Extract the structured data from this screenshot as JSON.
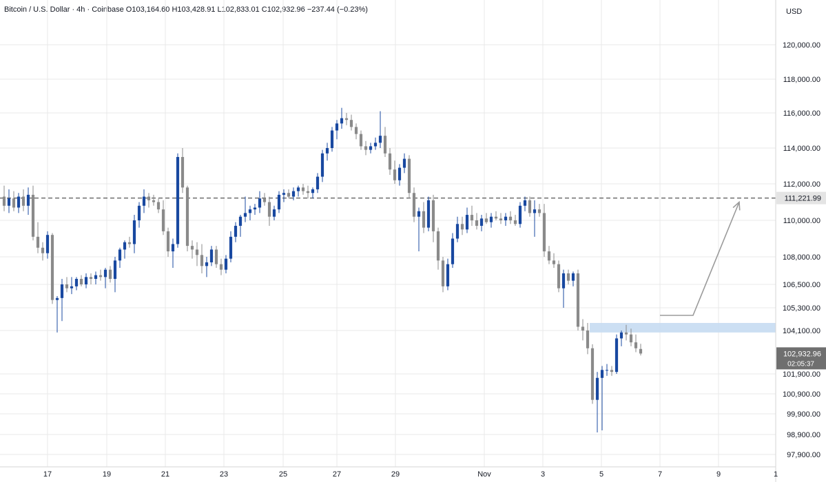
{
  "header": {
    "symbol": "Bitcoin / U.S. Dollar",
    "sep1": "·",
    "interval": "4h",
    "sep2": "·",
    "exchange": "Coinbase",
    "o_label": "O",
    "o_value": "103,164.60",
    "h_label": "H",
    "h_value": "103,428.91",
    "l_label": "L",
    "l_value": "102,833.01",
    "c_label": "C",
    "c_value": "102,932.96",
    "change": "−237.44 (−0.23%)"
  },
  "colors": {
    "up": "#1848a0",
    "down": "#8a8a8a",
    "grid": "#e9e9e9",
    "level_line": "#555555",
    "zone": "#c6dcf2",
    "arrow": "#9a9a9a",
    "last_price_bg": "#6f6f6f"
  },
  "chart_data": {
    "type": "candlestick",
    "currency": "USD",
    "price_scale": {
      "unit": "USD",
      "labels": [
        "120,000.00",
        "118,000.00",
        "116,000.00",
        "114,000.00",
        "112,000.00",
        "110,000.00",
        "108,000.00",
        "106,500.00",
        "105,300.00",
        "104,100.00",
        "101,900.00",
        "100,900.00",
        "99,900.00",
        "98,900.00",
        "97,900.00"
      ]
    },
    "time_scale": {
      "labels": [
        "17",
        "19",
        "21",
        "23",
        "25",
        "27",
        "29",
        "Nov",
        "3",
        "5",
        "7",
        "9",
        "1"
      ]
    },
    "resistance_level": {
      "value": 111221.99,
      "label": "111,221.99"
    },
    "support_zone": {
      "low": 104000,
      "high": 104500
    },
    "last_price": {
      "value": 102932.96,
      "label": "102,932.96",
      "countdown": "02:05:37"
    },
    "projection_arrow": {
      "from": 104900,
      "to": 111000
    },
    "candles": [
      {
        "o": 111300,
        "h": 111900,
        "l": 110500,
        "c": 110800
      },
      {
        "o": 110800,
        "h": 111700,
        "l": 110400,
        "c": 111200
      },
      {
        "o": 111200,
        "h": 111600,
        "l": 110500,
        "c": 110700
      },
      {
        "o": 110700,
        "h": 111500,
        "l": 110400,
        "c": 111300
      },
      {
        "o": 111300,
        "h": 111700,
        "l": 110500,
        "c": 110800
      },
      {
        "o": 110800,
        "h": 111800,
        "l": 110300,
        "c": 111400
      },
      {
        "o": 111400,
        "h": 111900,
        "l": 108900,
        "c": 109100
      },
      {
        "o": 109100,
        "h": 109900,
        "l": 108200,
        "c": 108500
      },
      {
        "o": 108500,
        "h": 108800,
        "l": 107800,
        "c": 108200
      },
      {
        "o": 108200,
        "h": 109400,
        "l": 107900,
        "c": 109200
      },
      {
        "o": 109200,
        "h": 109300,
        "l": 105500,
        "c": 105700
      },
      {
        "o": 105700,
        "h": 105900,
        "l": 104000,
        "c": 105800
      },
      {
        "o": 105800,
        "h": 106800,
        "l": 104600,
        "c": 106500
      },
      {
        "o": 106500,
        "h": 106900,
        "l": 106100,
        "c": 106300
      },
      {
        "o": 106300,
        "h": 106900,
        "l": 106000,
        "c": 106400
      },
      {
        "o": 106400,
        "h": 106900,
        "l": 106200,
        "c": 106800
      },
      {
        "o": 106800,
        "h": 107000,
        "l": 106400,
        "c": 106500
      },
      {
        "o": 106500,
        "h": 107100,
        "l": 106300,
        "c": 106900
      },
      {
        "o": 106900,
        "h": 107100,
        "l": 106500,
        "c": 106800
      },
      {
        "o": 106800,
        "h": 107200,
        "l": 106500,
        "c": 107000
      },
      {
        "o": 107000,
        "h": 107300,
        "l": 106700,
        "c": 106900
      },
      {
        "o": 106900,
        "h": 107400,
        "l": 106300,
        "c": 107300
      },
      {
        "o": 107300,
        "h": 107500,
        "l": 106600,
        "c": 106800
      },
      {
        "o": 106800,
        "h": 108000,
        "l": 106100,
        "c": 107800
      },
      {
        "o": 107800,
        "h": 108500,
        "l": 107400,
        "c": 108400
      },
      {
        "o": 108400,
        "h": 108900,
        "l": 107900,
        "c": 108800
      },
      {
        "o": 108800,
        "h": 109100,
        "l": 108500,
        "c": 108700
      },
      {
        "o": 108700,
        "h": 110300,
        "l": 108200,
        "c": 110000
      },
      {
        "o": 110000,
        "h": 111000,
        "l": 109600,
        "c": 110800
      },
      {
        "o": 110800,
        "h": 111700,
        "l": 110400,
        "c": 111300
      },
      {
        "o": 111300,
        "h": 111500,
        "l": 110700,
        "c": 111100
      },
      {
        "o": 111100,
        "h": 111400,
        "l": 110800,
        "c": 111000
      },
      {
        "o": 111000,
        "h": 111200,
        "l": 110400,
        "c": 110600
      },
      {
        "o": 110600,
        "h": 111100,
        "l": 109200,
        "c": 109400
      },
      {
        "o": 109400,
        "h": 109600,
        "l": 108000,
        "c": 108300
      },
      {
        "o": 108300,
        "h": 109000,
        "l": 107400,
        "c": 108700
      },
      {
        "o": 108700,
        "h": 113700,
        "l": 108500,
        "c": 113500
      },
      {
        "o": 113500,
        "h": 114000,
        "l": 111500,
        "c": 111800
      },
      {
        "o": 111800,
        "h": 111900,
        "l": 108300,
        "c": 108600
      },
      {
        "o": 108600,
        "h": 108900,
        "l": 107900,
        "c": 108400
      },
      {
        "o": 108400,
        "h": 108800,
        "l": 107500,
        "c": 108100
      },
      {
        "o": 108100,
        "h": 108700,
        "l": 107100,
        "c": 107500
      },
      {
        "o": 107500,
        "h": 108000,
        "l": 106900,
        "c": 107700
      },
      {
        "o": 107700,
        "h": 108600,
        "l": 107500,
        "c": 108400
      },
      {
        "o": 108400,
        "h": 108600,
        "l": 107400,
        "c": 107600
      },
      {
        "o": 107600,
        "h": 107900,
        "l": 107000,
        "c": 107300
      },
      {
        "o": 107300,
        "h": 108100,
        "l": 107100,
        "c": 107900
      },
      {
        "o": 107900,
        "h": 109400,
        "l": 107700,
        "c": 109100
      },
      {
        "o": 109100,
        "h": 109900,
        "l": 108800,
        "c": 109700
      },
      {
        "o": 109700,
        "h": 110300,
        "l": 109100,
        "c": 110200
      },
      {
        "o": 110200,
        "h": 111300,
        "l": 109900,
        "c": 110400
      },
      {
        "o": 110400,
        "h": 110800,
        "l": 110000,
        "c": 110600
      },
      {
        "o": 110600,
        "h": 110900,
        "l": 110300,
        "c": 110700
      },
      {
        "o": 110700,
        "h": 111600,
        "l": 110400,
        "c": 111200
      },
      {
        "o": 111200,
        "h": 111500,
        "l": 110800,
        "c": 111000
      },
      {
        "o": 111000,
        "h": 111300,
        "l": 109700,
        "c": 110200
      },
      {
        "o": 110200,
        "h": 110800,
        "l": 110000,
        "c": 110600
      },
      {
        "o": 110600,
        "h": 111600,
        "l": 110400,
        "c": 111400
      },
      {
        "o": 111400,
        "h": 111700,
        "l": 111000,
        "c": 111500
      },
      {
        "o": 111500,
        "h": 111700,
        "l": 111200,
        "c": 111300
      },
      {
        "o": 111300,
        "h": 111800,
        "l": 111100,
        "c": 111600
      },
      {
        "o": 111600,
        "h": 111900,
        "l": 111300,
        "c": 111800
      },
      {
        "o": 111800,
        "h": 112000,
        "l": 111400,
        "c": 111600
      },
      {
        "o": 111600,
        "h": 111900,
        "l": 111200,
        "c": 111500
      },
      {
        "o": 111500,
        "h": 111800,
        "l": 111200,
        "c": 111700
      },
      {
        "o": 111700,
        "h": 112600,
        "l": 111500,
        "c": 112400
      },
      {
        "o": 112400,
        "h": 113900,
        "l": 112100,
        "c": 113700
      },
      {
        "o": 113700,
        "h": 114300,
        "l": 113300,
        "c": 114000
      },
      {
        "o": 114000,
        "h": 115200,
        "l": 113800,
        "c": 115000
      },
      {
        "o": 115000,
        "h": 115600,
        "l": 114500,
        "c": 115400
      },
      {
        "o": 115400,
        "h": 116300,
        "l": 115100,
        "c": 115700
      },
      {
        "o": 115700,
        "h": 116000,
        "l": 115300,
        "c": 115600
      },
      {
        "o": 115600,
        "h": 115900,
        "l": 115000,
        "c": 115200
      },
      {
        "o": 115200,
        "h": 115400,
        "l": 114500,
        "c": 114800
      },
      {
        "o": 114800,
        "h": 115000,
        "l": 113900,
        "c": 114100
      },
      {
        "o": 114100,
        "h": 114400,
        "l": 113600,
        "c": 113900
      },
      {
        "o": 113900,
        "h": 114300,
        "l": 113700,
        "c": 114100
      },
      {
        "o": 114100,
        "h": 114600,
        "l": 113900,
        "c": 114300
      },
      {
        "o": 114300,
        "h": 116100,
        "l": 114000,
        "c": 114700
      },
      {
        "o": 114700,
        "h": 115200,
        "l": 113500,
        "c": 113700
      },
      {
        "o": 113700,
        "h": 114000,
        "l": 112500,
        "c": 112800
      },
      {
        "o": 112800,
        "h": 113300,
        "l": 112000,
        "c": 112200
      },
      {
        "o": 112200,
        "h": 113100,
        "l": 111900,
        "c": 112900
      },
      {
        "o": 112900,
        "h": 113700,
        "l": 112600,
        "c": 113400
      },
      {
        "o": 113400,
        "h": 113600,
        "l": 111200,
        "c": 111500
      },
      {
        "o": 111500,
        "h": 111800,
        "l": 109900,
        "c": 110200
      },
      {
        "o": 110200,
        "h": 110700,
        "l": 108300,
        "c": 110500
      },
      {
        "o": 110500,
        "h": 111000,
        "l": 109300,
        "c": 109600
      },
      {
        "o": 109600,
        "h": 111300,
        "l": 109400,
        "c": 111100
      },
      {
        "o": 111100,
        "h": 111400,
        "l": 108800,
        "c": 109400
      },
      {
        "o": 109400,
        "h": 109600,
        "l": 107300,
        "c": 107800
      },
      {
        "o": 107800,
        "h": 108000,
        "l": 106100,
        "c": 106400
      },
      {
        "o": 106400,
        "h": 107900,
        "l": 106200,
        "c": 107600
      },
      {
        "o": 107600,
        "h": 109300,
        "l": 107400,
        "c": 109000
      },
      {
        "o": 109000,
        "h": 110200,
        "l": 108800,
        "c": 109800
      },
      {
        "o": 109800,
        "h": 110200,
        "l": 109200,
        "c": 109500
      },
      {
        "o": 109500,
        "h": 110700,
        "l": 109300,
        "c": 110300
      },
      {
        "o": 110300,
        "h": 110800,
        "l": 109700,
        "c": 110000
      },
      {
        "o": 110000,
        "h": 110400,
        "l": 109500,
        "c": 109700
      },
      {
        "o": 109700,
        "h": 110300,
        "l": 109400,
        "c": 110100
      },
      {
        "o": 110100,
        "h": 110400,
        "l": 109800,
        "c": 109900
      },
      {
        "o": 109900,
        "h": 110400,
        "l": 109600,
        "c": 110200
      },
      {
        "o": 110200,
        "h": 110500,
        "l": 110000,
        "c": 110100
      },
      {
        "o": 110100,
        "h": 110400,
        "l": 109800,
        "c": 110000
      },
      {
        "o": 110000,
        "h": 110400,
        "l": 109700,
        "c": 110200
      },
      {
        "o": 110200,
        "h": 110500,
        "l": 109800,
        "c": 110000
      },
      {
        "o": 110000,
        "h": 110300,
        "l": 109700,
        "c": 109800
      },
      {
        "o": 109800,
        "h": 111000,
        "l": 109600,
        "c": 110800
      },
      {
        "o": 110800,
        "h": 111300,
        "l": 110500,
        "c": 111100
      },
      {
        "o": 111100,
        "h": 111300,
        "l": 110200,
        "c": 110400
      },
      {
        "o": 110400,
        "h": 111100,
        "l": 109100,
        "c": 110600
      },
      {
        "o": 110600,
        "h": 110900,
        "l": 110200,
        "c": 110400
      },
      {
        "o": 110400,
        "h": 110900,
        "l": 108000,
        "c": 108300
      },
      {
        "o": 108300,
        "h": 108600,
        "l": 107600,
        "c": 107800
      },
      {
        "o": 107800,
        "h": 108200,
        "l": 107400,
        "c": 107600
      },
      {
        "o": 107600,
        "h": 107800,
        "l": 106100,
        "c": 106300
      },
      {
        "o": 106300,
        "h": 107300,
        "l": 105300,
        "c": 107100
      },
      {
        "o": 107100,
        "h": 107300,
        "l": 106500,
        "c": 106700
      },
      {
        "o": 106700,
        "h": 107200,
        "l": 106400,
        "c": 107100
      },
      {
        "o": 107100,
        "h": 107300,
        "l": 104100,
        "c": 104300
      },
      {
        "o": 104300,
        "h": 104700,
        "l": 103600,
        "c": 104100
      },
      {
        "o": 104100,
        "h": 104500,
        "l": 102900,
        "c": 103200
      },
      {
        "o": 103200,
        "h": 103400,
        "l": 100400,
        "c": 100600
      },
      {
        "o": 100600,
        "h": 102000,
        "l": 99000,
        "c": 101700
      },
      {
        "o": 101700,
        "h": 102300,
        "l": 99100,
        "c": 102100
      },
      {
        "o": 102100,
        "h": 102400,
        "l": 101800,
        "c": 102100
      },
      {
        "o": 102100,
        "h": 102300,
        "l": 101800,
        "c": 102000
      },
      {
        "o": 102000,
        "h": 103900,
        "l": 101900,
        "c": 103700
      },
      {
        "o": 103700,
        "h": 104100,
        "l": 103300,
        "c": 104000
      },
      {
        "o": 104000,
        "h": 104400,
        "l": 103600,
        "c": 103900
      },
      {
        "o": 103900,
        "h": 104200,
        "l": 103300,
        "c": 103500
      },
      {
        "o": 103500,
        "h": 103900,
        "l": 103000,
        "c": 103200
      },
      {
        "o": 103164.6,
        "h": 103428.91,
        "l": 102833.01,
        "c": 102932.96
      }
    ]
  }
}
